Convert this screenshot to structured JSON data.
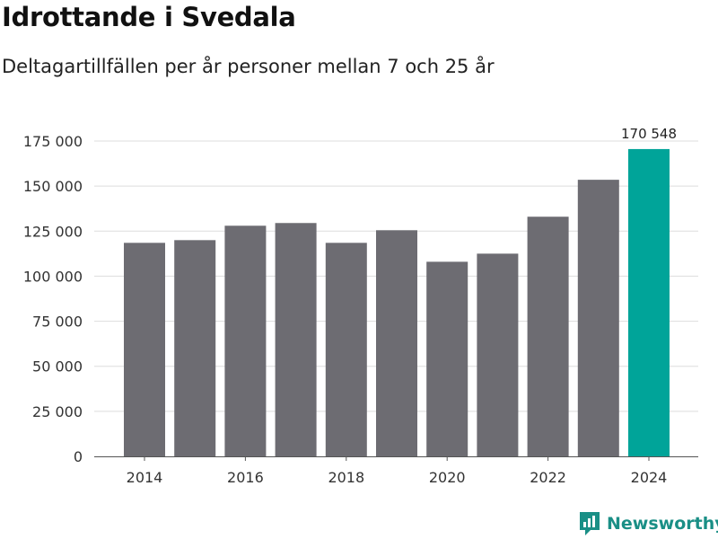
{
  "header": {
    "title": "Idrottande i Svedala",
    "subtitle": "Deltagartillfällen per år personer mellan 7 och 25 år"
  },
  "brand": {
    "name": "Newsworthy",
    "icon": "newsworthy-logo-icon"
  },
  "colors": {
    "bar": "#6d6c72",
    "highlight": "#00a499",
    "grid": "#dddddd",
    "brand": "#1a8f86"
  },
  "chart_data": {
    "type": "bar",
    "title": "Idrottande i Svedala",
    "subtitle": "Deltagartillfällen per år personer mellan 7 och 25 år",
    "xlabel": "",
    "ylabel": "",
    "categories": [
      "2014",
      "2015",
      "2016",
      "2017",
      "2018",
      "2019",
      "2020",
      "2021",
      "2022",
      "2023",
      "2024"
    ],
    "values": [
      118500,
      120000,
      128000,
      129500,
      118500,
      125500,
      108000,
      112500,
      133000,
      153500,
      170548
    ],
    "highlight_index": 10,
    "data_labels": [
      {
        "index": 10,
        "text": "170 548"
      }
    ],
    "x_ticks": [
      "2014",
      "2016",
      "2018",
      "2020",
      "2022",
      "2024"
    ],
    "ylim": [
      0,
      175000
    ],
    "y_ticks": [
      0,
      25000,
      50000,
      75000,
      100000,
      125000,
      150000,
      175000
    ],
    "y_tick_labels": [
      "0",
      "25 000",
      "50 000",
      "75 000",
      "100 000",
      "125 000",
      "150 000",
      "175 000"
    ],
    "grid": true
  }
}
